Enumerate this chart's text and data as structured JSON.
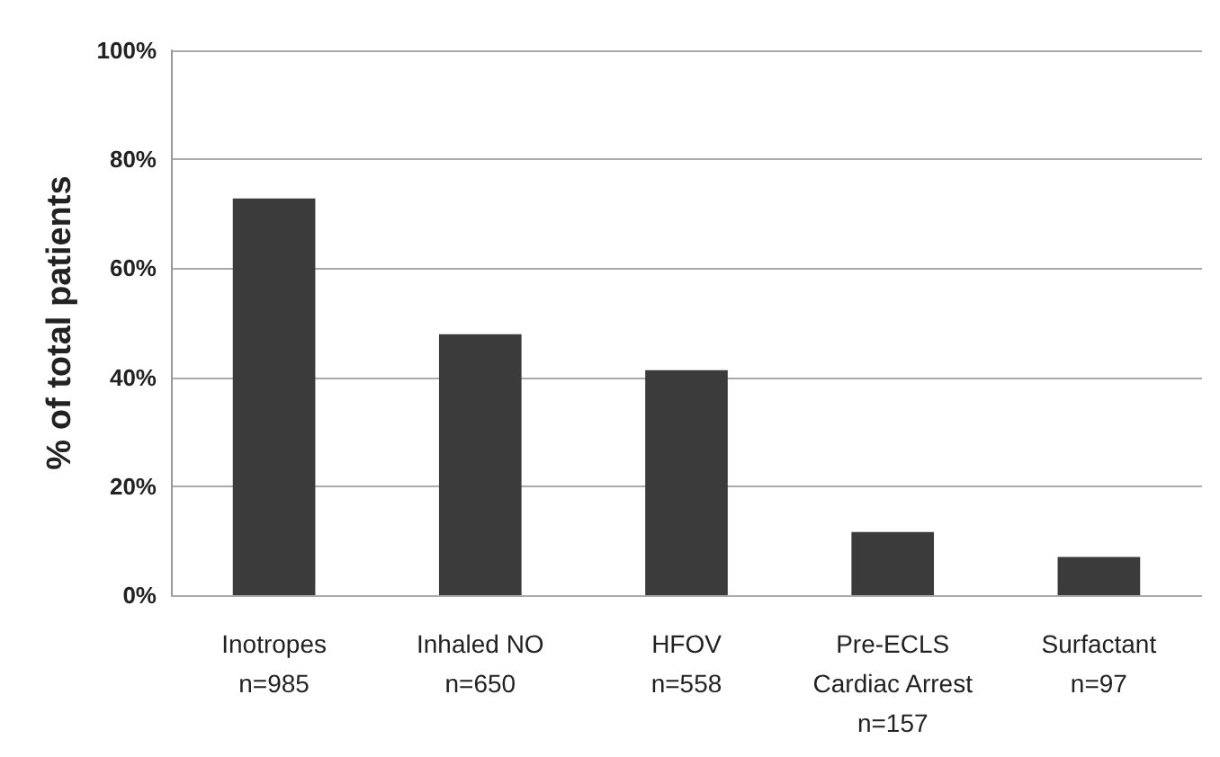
{
  "chart_data": {
    "type": "bar",
    "ylabel": "% of total patients",
    "categories": [
      "Inotropes\nn=985",
      "Inhaled NO\nn=650",
      "HFOV\nn=558",
      "Pre-ECLS\nCardiac Arrest\nn=157",
      "Surfactant\nn=97"
    ],
    "values": [
      72.8,
      47.9,
      41.3,
      11.6,
      7.0
    ],
    "color": "#3b3b3b",
    "ylim": [
      0,
      100
    ],
    "yticks": [
      {
        "value": 0,
        "label": "0%"
      },
      {
        "value": 20,
        "label": "20%"
      },
      {
        "value": 40,
        "label": "40%"
      },
      {
        "value": 60,
        "label": "60%"
      },
      {
        "value": 80,
        "label": "80%"
      },
      {
        "value": 100,
        "label": "100%"
      }
    ],
    "grid": "y"
  }
}
